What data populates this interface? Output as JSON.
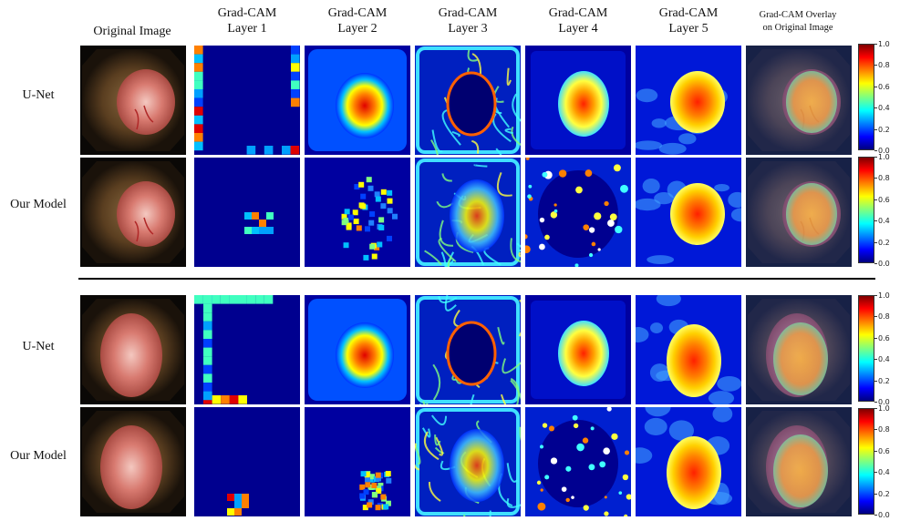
{
  "columns": [
    {
      "id": "original",
      "label": "Original Image"
    },
    {
      "id": "layer1",
      "label_line1": "Grad-CAM",
      "label_line2": "Layer 1"
    },
    {
      "id": "layer2",
      "label_line1": "Grad-CAM",
      "label_line2": "Layer 2"
    },
    {
      "id": "layer3",
      "label_line1": "Grad-CAM",
      "label_line2": "Layer 3"
    },
    {
      "id": "layer4",
      "label_line1": "Grad-CAM",
      "label_line2": "Layer 4"
    },
    {
      "id": "layer5",
      "label_line1": "Grad-CAM",
      "label_line2": "Layer 5"
    },
    {
      "id": "overlay",
      "label_line1": "Grad-CAM Overlay",
      "label_line2": "on Original Image"
    }
  ],
  "rows": [
    {
      "label": "U-Net",
      "case": 1
    },
    {
      "label": "Our Model",
      "case": 1
    },
    {
      "label": "U-Net",
      "case": 2
    },
    {
      "label": "Our Model",
      "case": 2
    }
  ],
  "colorbar": {
    "ticks": [
      "1.0",
      "0.8",
      "0.6",
      "0.4",
      "0.2",
      "0.0"
    ],
    "range": [
      0,
      1
    ],
    "colormap": "jet"
  },
  "colors": {
    "background": "#ffffff",
    "divider": "#000000",
    "jet_low": "#00007f",
    "jet_high": "#7f0000"
  }
}
